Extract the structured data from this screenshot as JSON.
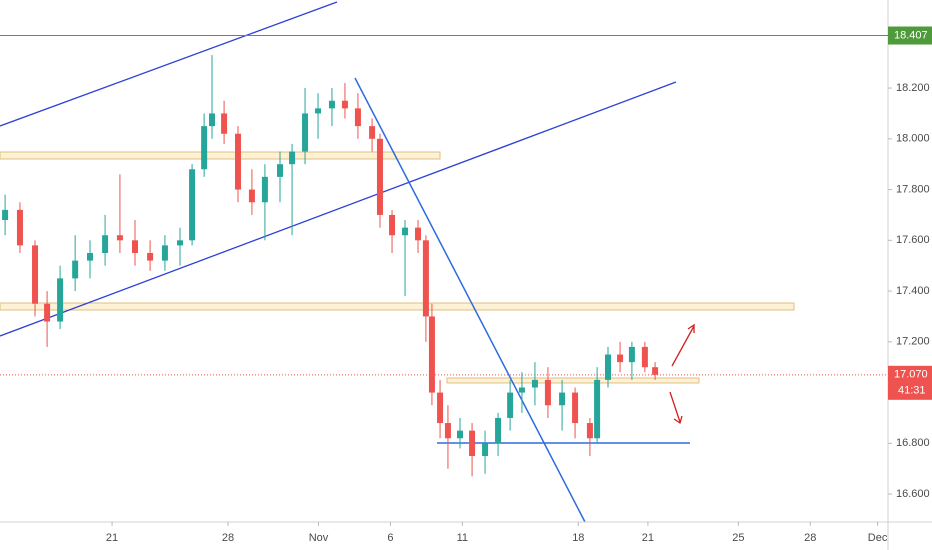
{
  "chart_data": {
    "type": "candlestick",
    "x": [
      -4.61,
      -3.97,
      -3.32,
      -2.8,
      -2.24,
      -1.59,
      -0.95,
      -0.3,
      0.34,
      0.99,
      1.64,
      2.28,
      2.93,
      3.45,
      3.97,
      4.31,
      4.83,
      5.43,
      6.03,
      6.59,
      7.24,
      7.76,
      8.32,
      8.88,
      9.48,
      10.04,
      10.6,
      11.21,
      11.55,
      12.07,
      12.63,
      13.19,
      13.53,
      13.79,
      14.14,
      14.48,
      15.0,
      15.52,
      16.08,
      16.64,
      17.16,
      17.67,
      18.23,
      18.79,
      19.4,
      19.96,
      20.6,
      20.91,
      21.38,
      21.9,
      22.41,
      22.97,
      23.41
    ],
    "open": [
      17.68,
      17.72,
      17.58,
      17.35,
      17.28,
      17.45,
      17.52,
      17.55,
      17.62,
      17.6,
      17.55,
      17.52,
      17.58,
      17.6,
      17.88,
      18.05,
      18.1,
      18.02,
      17.8,
      17.75,
      17.85,
      17.9,
      17.95,
      18.1,
      18.12,
      18.15,
      18.12,
      18.05,
      18.0,
      17.7,
      17.62,
      17.65,
      17.6,
      17.3,
      17.0,
      16.88,
      16.82,
      16.85,
      16.75,
      16.8,
      16.9,
      17.0,
      17.02,
      17.05,
      16.95,
      17.0,
      16.88,
      16.82,
      17.05,
      17.15,
      17.12,
      17.18,
      17.1
    ],
    "high": [
      17.78,
      17.75,
      17.6,
      17.4,
      17.5,
      17.62,
      17.6,
      17.7,
      17.86,
      17.68,
      17.6,
      17.62,
      17.65,
      17.9,
      18.1,
      18.33,
      18.15,
      18.05,
      17.88,
      17.9,
      17.95,
      17.98,
      18.2,
      18.18,
      18.2,
      18.22,
      18.18,
      18.08,
      18.02,
      17.72,
      17.68,
      17.68,
      17.62,
      17.35,
      17.05,
      16.95,
      16.9,
      16.88,
      16.85,
      16.92,
      17.05,
      17.08,
      17.12,
      17.1,
      17.05,
      17.02,
      16.9,
      17.1,
      17.18,
      17.2,
      17.2,
      17.2,
      17.12
    ],
    "low": [
      17.62,
      17.55,
      17.3,
      17.18,
      17.25,
      17.4,
      17.45,
      17.5,
      17.55,
      17.5,
      17.48,
      17.48,
      17.5,
      17.58,
      17.85,
      18.0,
      17.98,
      17.75,
      17.7,
      17.6,
      17.75,
      17.62,
      17.9,
      18.0,
      18.05,
      18.08,
      18.0,
      17.95,
      17.65,
      17.55,
      17.38,
      17.55,
      17.2,
      16.95,
      16.82,
      16.7,
      16.78,
      16.67,
      16.68,
      16.75,
      16.85,
      16.92,
      16.95,
      16.9,
      16.85,
      16.82,
      16.75,
      16.8,
      17.02,
      17.08,
      17.05,
      17.08,
      17.05
    ],
    "close": [
      17.72,
      17.58,
      17.35,
      17.28,
      17.45,
      17.52,
      17.55,
      17.62,
      17.6,
      17.55,
      17.52,
      17.58,
      17.6,
      17.88,
      18.05,
      18.1,
      18.02,
      17.8,
      17.75,
      17.85,
      17.9,
      17.95,
      18.1,
      18.12,
      18.15,
      18.12,
      18.05,
      18.0,
      17.7,
      17.62,
      17.65,
      17.6,
      17.3,
      17.0,
      16.88,
      16.82,
      16.85,
      16.75,
      16.8,
      16.9,
      17.0,
      17.02,
      17.05,
      16.95,
      17.0,
      16.88,
      16.82,
      17.05,
      17.15,
      17.12,
      17.18,
      17.1,
      17.07
    ],
    "up_color": "#26a69a",
    "down_color": "#ef5350",
    "xlim": [
      -4.83,
      33.45
    ],
    "xticks": [
      {
        "value": 0,
        "label": "21"
      },
      {
        "value": 5,
        "label": "28"
      },
      {
        "value": 8.9,
        "label": "Nov"
      },
      {
        "value": 12,
        "label": "6"
      },
      {
        "value": 15.1,
        "label": "11"
      },
      {
        "value": 20.1,
        "label": "18"
      },
      {
        "value": 23.1,
        "label": "21"
      },
      {
        "value": 27,
        "label": "25"
      },
      {
        "value": 30.1,
        "label": "28"
      },
      {
        "value": 33,
        "label": "Dec"
      }
    ],
    "ylim": [
      16.49,
      18.547
    ],
    "yticks": [
      {
        "value": 16.6,
        "label": "16.600"
      },
      {
        "value": 16.8,
        "label": "16.800"
      },
      {
        "value": 17.0,
        "label": "17.000"
      },
      {
        "value": 17.2,
        "label": "17.200"
      },
      {
        "value": 17.4,
        "label": "17.400"
      },
      {
        "value": 17.6,
        "label": "17.600"
      },
      {
        "value": 17.8,
        "label": "17.800"
      },
      {
        "value": 18.0,
        "label": "18.000"
      },
      {
        "value": 18.2,
        "label": "18.200"
      }
    ],
    "level": {
      "value": 18.407,
      "label": "18.407",
      "color": "#4f9a3a"
    },
    "last_price": {
      "value": 17.07,
      "label": "17.070",
      "color": "#ef5350"
    },
    "countdown": "41:31",
    "grid": false
  }
}
